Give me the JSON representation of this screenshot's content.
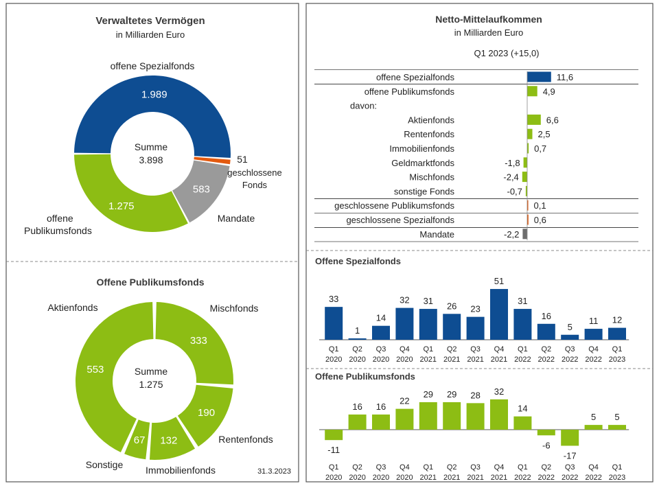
{
  "colors": {
    "blue": "#0e4d92",
    "green": "#8dbd14",
    "gray": "#9a9a9a",
    "orange": "#e35a0f",
    "dark_gray": "#6d6d6d",
    "text": "#222222"
  },
  "left_panel": {
    "date": "31.3.2023",
    "aum": {
      "title": "Verwaltetes Vermögen",
      "subtitle": "in Milliarden Euro",
      "center_label": "Summe",
      "center_value": "3.898",
      "segments": [
        {
          "name": "offene Spezialfonds",
          "value": 1989,
          "value_label": "1.989",
          "color_key": "blue"
        },
        {
          "name": "geschlossene Fonds",
          "name_lines": [
            "geschlossene",
            "Fonds"
          ],
          "value": 51,
          "value_label": "51",
          "color_key": "orange"
        },
        {
          "name": "Mandate",
          "value": 583,
          "value_label": "583",
          "color_key": "gray"
        },
        {
          "name": "offene Publikumsfonds",
          "name_lines": [
            "offene",
            "Publikumsfonds"
          ],
          "value": 1275,
          "value_label": "1.275",
          "color_key": "green"
        }
      ]
    },
    "publikum": {
      "title": "Offene Publikumsfonds",
      "center_label": "Summe",
      "center_value": "1.275",
      "segments": [
        {
          "name": "Mischfonds",
          "value": 333,
          "value_label": "333"
        },
        {
          "name": "Rentenfonds",
          "value": 190,
          "value_label": "190"
        },
        {
          "name": "Immobilienfonds",
          "value": 132,
          "value_label": "132"
        },
        {
          "name": "Sonstige",
          "value": 67,
          "value_label": "67"
        },
        {
          "name": "Aktienfonds",
          "value": 553,
          "value_label": "553"
        }
      ]
    }
  },
  "right_panel": {
    "netflow": {
      "title": "Netto-Mittelaufkommen",
      "subtitle": "in Milliarden Euro",
      "period": "Q1 2023 (+15,0)"
    },
    "spezial_title": "Offene Spezialfonds",
    "publikum_title": "Offene Publikumsfonds"
  },
  "chart_data": [
    {
      "type": "pie",
      "title": "Verwaltetes Vermögen",
      "subtitle": "in Milliarden Euro",
      "labels": [
        "offene Spezialfonds",
        "geschlossene Fonds",
        "Mandate",
        "offene Publikumsfonds"
      ],
      "values": [
        1989,
        51,
        583,
        1275
      ],
      "total": 3898
    },
    {
      "type": "pie",
      "title": "Offene Publikumsfonds",
      "labels": [
        "Mischfonds",
        "Rentenfonds",
        "Immobilienfonds",
        "Sonstige",
        "Aktienfonds"
      ],
      "values": [
        333,
        190,
        132,
        67,
        553
      ],
      "total": 1275
    },
    {
      "type": "bar",
      "orientation": "horizontal",
      "title": "Netto-Mittelaufkommen",
      "subtitle": "in Milliarden Euro",
      "period": "Q1 2023 (+15,0)",
      "rows": [
        {
          "label": "offene Spezialfonds",
          "value": 11.6,
          "value_label": "11,6",
          "color_key": "blue"
        },
        {
          "label": "offene Publikumsfonds",
          "value": 4.9,
          "value_label": "4,9",
          "color_key": "green"
        },
        {
          "label": "davon:",
          "is_header": true
        },
        {
          "label": "Aktienfonds",
          "value": 6.6,
          "value_label": "6,6",
          "color_key": "green"
        },
        {
          "label": "Rentenfonds",
          "value": 2.5,
          "value_label": "2,5",
          "color_key": "green"
        },
        {
          "label": "Immobilienfonds",
          "value": 0.7,
          "value_label": "0,7",
          "color_key": "green"
        },
        {
          "label": "Geldmarktfonds",
          "value": -1.8,
          "value_label": "-1,8",
          "color_key": "green"
        },
        {
          "label": "Mischfonds",
          "value": -2.4,
          "value_label": "-2,4",
          "color_key": "green"
        },
        {
          "label": "sonstige Fonds",
          "value": -0.7,
          "value_label": "-0,7",
          "color_key": "green"
        },
        {
          "label": "geschlossene Publikumsfonds",
          "value": 0.1,
          "value_label": "0,1",
          "color_key": "orange"
        },
        {
          "label": "geschlossene Spezialfonds",
          "value": 0.6,
          "value_label": "0,6",
          "color_key": "orange"
        },
        {
          "label": "Mandate",
          "value": -2.2,
          "value_label": "-2,2",
          "color_key": "dark_gray"
        }
      ]
    },
    {
      "type": "bar",
      "title": "Offene Spezialfonds",
      "categories": [
        [
          "Q1",
          "2020"
        ],
        [
          "Q2",
          "2020"
        ],
        [
          "Q3",
          "2020"
        ],
        [
          "Q4",
          "2020"
        ],
        [
          "Q1",
          "2021"
        ],
        [
          "Q2",
          "2021"
        ],
        [
          "Q3",
          "2021"
        ],
        [
          "Q4",
          "2021"
        ],
        [
          "Q1",
          "2022"
        ],
        [
          "Q2",
          "2022"
        ],
        [
          "Q3",
          "2022"
        ],
        [
          "Q4",
          "2022"
        ],
        [
          "Q1",
          "2023"
        ]
      ],
      "values": [
        33,
        1,
        14,
        32,
        31,
        26,
        23,
        51,
        31,
        16,
        5,
        11,
        12
      ],
      "color_key": "blue"
    },
    {
      "type": "bar",
      "title": "Offene Publikumsfonds",
      "categories": [
        [
          "Q1",
          "2020"
        ],
        [
          "Q2",
          "2020"
        ],
        [
          "Q3",
          "2020"
        ],
        [
          "Q4",
          "2020"
        ],
        [
          "Q1",
          "2021"
        ],
        [
          "Q2",
          "2021"
        ],
        [
          "Q3",
          "2021"
        ],
        [
          "Q4",
          "2021"
        ],
        [
          "Q1",
          "2022"
        ],
        [
          "Q2",
          "2022"
        ],
        [
          "Q3",
          "2022"
        ],
        [
          "Q4",
          "2022"
        ],
        [
          "Q1",
          "2023"
        ]
      ],
      "values": [
        -11,
        16,
        16,
        22,
        29,
        29,
        28,
        32,
        14,
        -6,
        -17,
        5,
        5
      ],
      "color_key": "green"
    }
  ]
}
